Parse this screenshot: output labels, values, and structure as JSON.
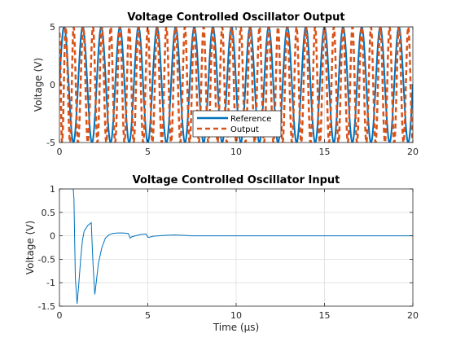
{
  "chart_data": [
    {
      "type": "line",
      "title": "Voltage Controlled Oscillator Output",
      "xlabel": "",
      "ylabel": "Voltage (V)",
      "xlim": [
        0,
        20
      ],
      "ylim": [
        -5,
        5
      ],
      "xticks": [
        "0",
        "5",
        "10",
        "15",
        "20"
      ],
      "yticks": [
        "5",
        "0",
        "-5"
      ],
      "grid": true,
      "legend": "bottom-center",
      "series": [
        {
          "name": "Reference",
          "color": "#0072BD",
          "style": "solid",
          "amplitude": 5,
          "frequency_cycles_per_us": 0.95,
          "x": [
            0.53,
            1.05,
            1.58,
            2.11,
            2.63,
            3.16,
            3.68,
            4.21,
            4.74,
            5.26,
            5.79,
            6.32,
            6.84,
            7.37,
            7.89,
            8.42,
            8.95,
            9.47,
            10.0,
            10.53,
            11.05,
            11.58,
            12.11,
            12.63,
            13.16,
            13.68,
            14.21,
            14.74,
            15.26,
            15.79,
            16.32,
            16.84,
            17.37,
            17.89,
            18.42,
            18.95,
            19.47,
            20.0
          ],
          "y": [
            -5,
            5,
            -5,
            5,
            -5,
            5,
            -5,
            5,
            -5,
            5,
            -5,
            5,
            -5,
            5,
            -5,
            5,
            -5,
            5,
            -5,
            5,
            -5,
            5,
            -5,
            5,
            -5,
            5,
            -5,
            5,
            -5,
            5,
            -5,
            5,
            -5,
            5,
            -5,
            5,
            -5,
            5
          ]
        },
        {
          "name": "Output",
          "color": "#D95319",
          "style": "dashed",
          "x": [
            0.0,
            0.15,
            0.35,
            0.6,
            0.8,
            1.05,
            1.35,
            1.6,
            1.9,
            2.15,
            2.4,
            2.65,
            2.9,
            3.15,
            3.42,
            3.68,
            3.95,
            4.2,
            4.47,
            4.74,
            5.0,
            5.26,
            5.53,
            5.79,
            6.05,
            6.32,
            6.58,
            6.84,
            7.1,
            7.37,
            7.63,
            7.89,
            8.16,
            8.42,
            8.68,
            8.95,
            9.21,
            9.47,
            9.74,
            10.0,
            10.26,
            10.53,
            10.79,
            11.05,
            11.32,
            11.58,
            11.84,
            12.11,
            12.37,
            12.63,
            12.89,
            13.16,
            13.42,
            13.68,
            13.95,
            14.21,
            14.47,
            14.74,
            15.0,
            15.26,
            15.53,
            15.79,
            16.05,
            16.32,
            16.58,
            16.84,
            17.1,
            17.37,
            17.63,
            17.89,
            18.16,
            18.42,
            18.68,
            18.95,
            19.21,
            19.47,
            19.74,
            20.0
          ],
          "y": [
            4.5,
            -5,
            5,
            -5,
            5,
            -5,
            5,
            -5,
            5,
            -5,
            5,
            -5,
            5,
            -5,
            5,
            -5,
            5,
            -5,
            5,
            -5,
            5,
            -5,
            5,
            -5,
            5,
            -5,
            5,
            -5,
            5,
            -5,
            5,
            -5,
            5,
            -5,
            5,
            -5,
            5,
            -5,
            5,
            -5,
            5,
            -5,
            5,
            -5,
            5,
            -5,
            5,
            -5,
            5,
            -5,
            5,
            -5,
            5,
            -5,
            5,
            -5,
            5,
            -5,
            5,
            -5,
            5,
            -5,
            5,
            -5,
            5,
            -5,
            5,
            -5,
            5,
            -5,
            5,
            -5,
            5,
            -5,
            5,
            -5,
            5,
            -5
          ]
        }
      ]
    },
    {
      "type": "line",
      "title": "Voltage Controlled Oscillator Input",
      "xlabel": "Time (μs)",
      "ylabel": "Voltage (V)",
      "xlim": [
        0,
        20
      ],
      "ylim": [
        -1.5,
        1
      ],
      "xticks": [
        "0",
        "5",
        "10",
        "15",
        "20"
      ],
      "yticks": [
        "1",
        "0.5",
        "0",
        "-0.5",
        "-1",
        "-1.5"
      ],
      "grid": true,
      "series": [
        {
          "color": "#0072BD",
          "x": [
            0.0,
            0.5,
            0.78,
            0.82,
            0.9,
            1.0,
            1.1,
            1.2,
            1.3,
            1.4,
            1.6,
            1.8,
            1.9,
            2.0,
            2.05,
            2.2,
            2.4,
            2.6,
            2.8,
            3.0,
            3.3,
            3.6,
            3.9,
            4.0,
            4.1,
            4.3,
            4.6,
            4.9,
            5.0,
            5.1,
            5.3,
            5.6,
            6.0,
            6.5,
            7.0,
            7.5,
            8.0,
            9.0,
            10.0,
            12.0,
            15.0,
            18.0,
            20.0
          ],
          "y": [
            1.0,
            1.0,
            1.0,
            0.8,
            -0.9,
            -1.45,
            -1.0,
            -0.5,
            -0.1,
            0.1,
            0.22,
            0.28,
            -0.6,
            -1.25,
            -1.1,
            -0.6,
            -0.25,
            -0.05,
            0.02,
            0.05,
            0.06,
            0.06,
            0.05,
            -0.05,
            -0.02,
            0.0,
            0.03,
            0.04,
            -0.03,
            -0.03,
            -0.01,
            0.0,
            0.01,
            0.02,
            0.01,
            0.0,
            0.0,
            0.0,
            0.0,
            0.0,
            0.0,
            0.0,
            0.0
          ]
        }
      ]
    }
  ]
}
